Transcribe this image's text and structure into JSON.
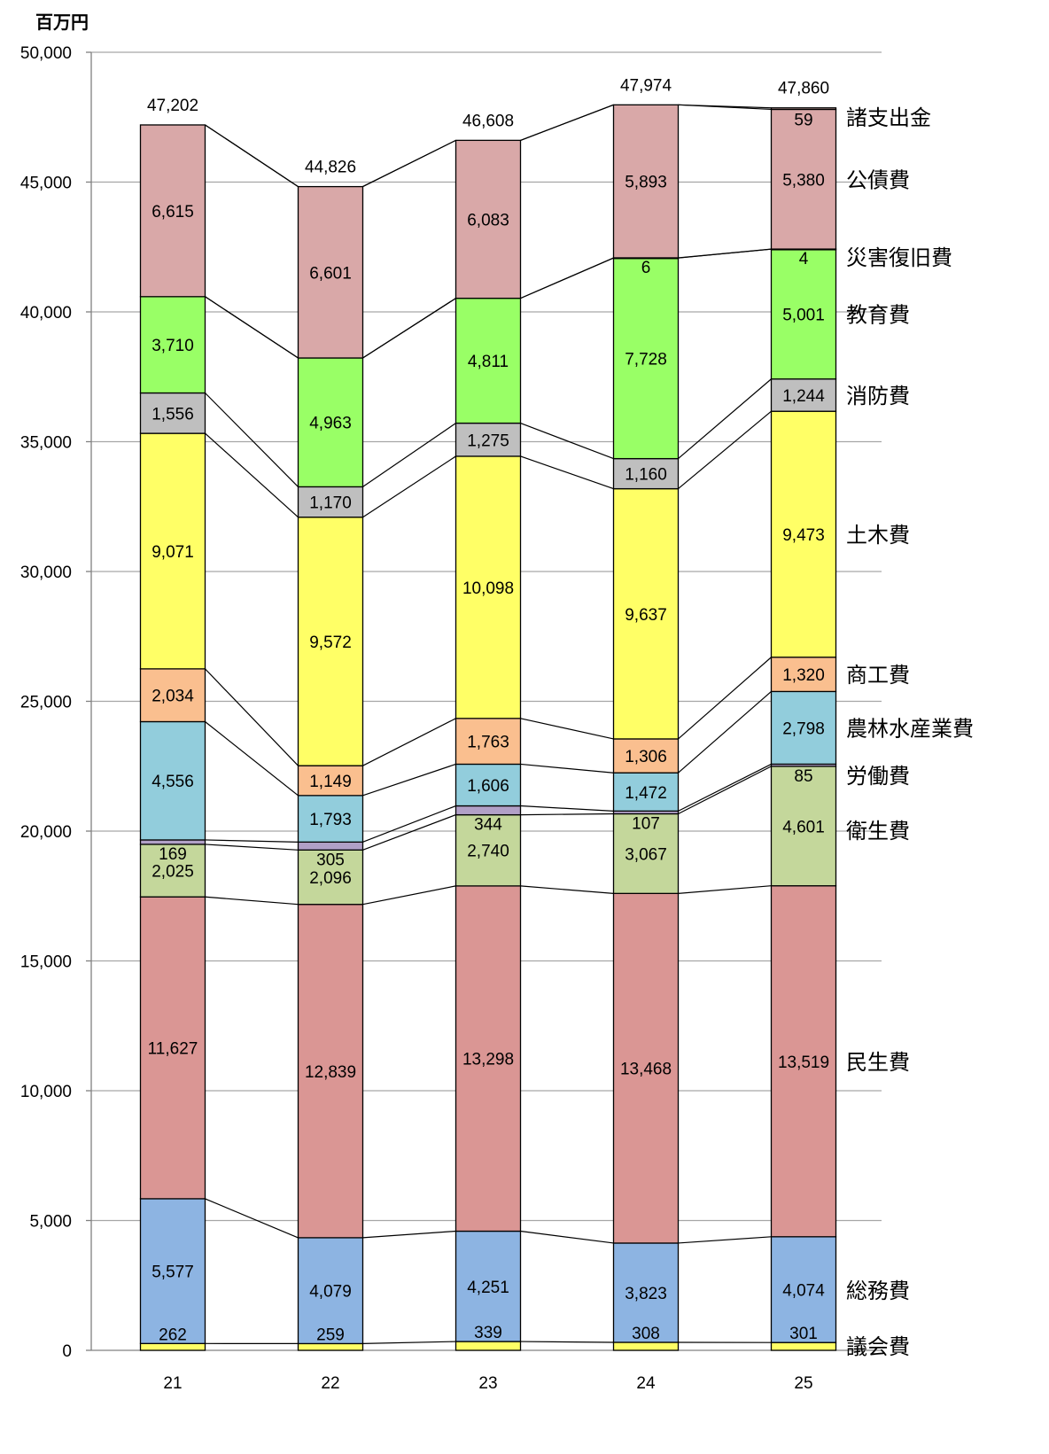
{
  "chart_data": {
    "type": "bar",
    "stacked": true,
    "unit_label": "百万円",
    "categories": [
      "21",
      "22",
      "23",
      "24",
      "25"
    ],
    "ylim": [
      0,
      50000
    ],
    "yticks": [
      0,
      5000,
      10000,
      15000,
      20000,
      25000,
      30000,
      35000,
      40000,
      45000,
      50000
    ],
    "ytick_labels": [
      "0",
      "5,000",
      "10,000",
      "15,000",
      "20,000",
      "25,000",
      "30,000",
      "35,000",
      "40,000",
      "45,000",
      "50,000"
    ],
    "grid": true,
    "totals": [
      47202,
      44826,
      46608,
      47974,
      47860
    ],
    "total_labels": [
      "47,202",
      "44,826",
      "46,608",
      "47,974",
      "47,860"
    ],
    "series": [
      {
        "name": "議会費",
        "color": "#ffff66",
        "values": [
          262,
          259,
          339,
          308,
          301
        ],
        "labels": [
          "262",
          "259",
          "339",
          "308",
          "301"
        ]
      },
      {
        "name": "総務費",
        "color": "#8db4e2",
        "values": [
          5577,
          4079,
          4251,
          3823,
          4074
        ],
        "labels": [
          "5,577",
          "4,079",
          "4,251",
          "3,823",
          "4,074"
        ]
      },
      {
        "name": "民生費",
        "color": "#da9694",
        "values": [
          11627,
          12839,
          13298,
          13468,
          13519
        ],
        "labels": [
          "11,627",
          "12,839",
          "13,298",
          "13,468",
          "13,519"
        ]
      },
      {
        "name": "衛生費",
        "color": "#c4d79b",
        "values": [
          2025,
          2096,
          2740,
          3067,
          4601
        ],
        "labels": [
          "2,025",
          "2,096",
          "2,740",
          "3,067",
          "4,601"
        ]
      },
      {
        "name": "労働費",
        "color": "#b1a0c7",
        "values": [
          169,
          305,
          344,
          107,
          85
        ],
        "labels": [
          "169",
          "305",
          "344",
          "107",
          "85"
        ]
      },
      {
        "name": "農林水産業費",
        "color": "#92cddc",
        "values": [
          4556,
          1793,
          1606,
          1472,
          2798
        ],
        "labels": [
          "4,556",
          "1,793",
          "1,606",
          "1,472",
          "2,798"
        ]
      },
      {
        "name": "商工費",
        "color": "#fabf8f",
        "values": [
          2034,
          1149,
          1763,
          1306,
          1320
        ],
        "labels": [
          "2,034",
          "1,149",
          "1,763",
          "1,306",
          "1,320"
        ]
      },
      {
        "name": "土木費",
        "color": "#ffff66",
        "values": [
          9071,
          9572,
          10098,
          9637,
          9473
        ],
        "labels": [
          "9,071",
          "9,572",
          "10,098",
          "9,637",
          "9,473"
        ]
      },
      {
        "name": "消防費",
        "color": "#bfbfbf",
        "values": [
          1556,
          1170,
          1275,
          1160,
          1244
        ],
        "labels": [
          "1,556",
          "1,170",
          "1,275",
          "1,160",
          "1,244"
        ]
      },
      {
        "name": "教育費",
        "color": "#99ff66",
        "values": [
          3710,
          4963,
          4811,
          7728,
          5001
        ],
        "labels": [
          "3,710",
          "4,963",
          "4,811",
          "7,728",
          "5,001"
        ]
      },
      {
        "name": "災害復旧費",
        "color": "#99ff66",
        "values": [
          0,
          0,
          0,
          6,
          4
        ],
        "labels": [
          "",
          "",
          "",
          "6",
          "4"
        ]
      },
      {
        "name": "公債費",
        "color": "#d9a8a8",
        "values": [
          6615,
          6601,
          6083,
          5893,
          5380
        ],
        "labels": [
          "6,615",
          "6,601",
          "6,083",
          "5,893",
          "5,380"
        ]
      },
      {
        "name": "諸支出金",
        "color": "#e6b9b8",
        "values": [
          0,
          0,
          0,
          0,
          59
        ],
        "labels": [
          "",
          "",
          "",
          "",
          "59"
        ]
      }
    ]
  }
}
